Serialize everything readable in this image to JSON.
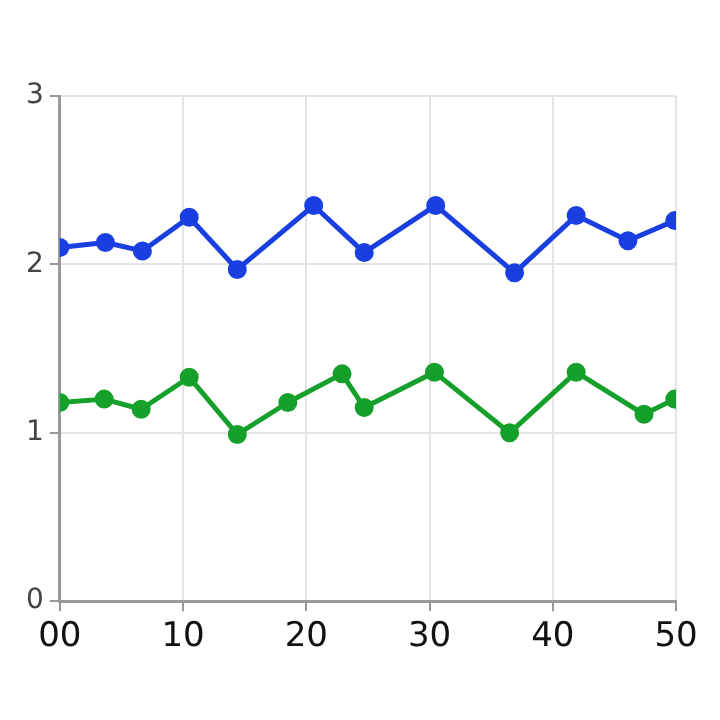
{
  "chart_data": {
    "type": "line",
    "xlim": [
      0,
      50
    ],
    "xticks": [
      {
        "value": 0,
        "label": "00"
      },
      10,
      20,
      30,
      40,
      50
    ],
    "ylim": [
      0,
      3
    ],
    "yticks": [
      0,
      1,
      2,
      3
    ],
    "grid": true,
    "marker": "circle",
    "line_style": "solid",
    "legend": false,
    "series": [
      {
        "color": "#1a3fe0",
        "x": [
          0,
          3.7,
          6.7,
          10.5,
          14.4,
          20.6,
          24.7,
          30.5,
          36.9,
          41.9,
          46.1,
          49.9
        ],
        "values": [
          2.1,
          2.13,
          2.08,
          2.28,
          1.97,
          2.35,
          2.07,
          2.35,
          1.95,
          2.29,
          2.14,
          2.26
        ]
      },
      {
        "color": "#14a02a",
        "x": [
          0,
          3.6,
          6.6,
          10.5,
          14.4,
          18.5,
          22.9,
          24.7,
          30.4,
          36.5,
          41.9,
          47.4,
          49.9
        ],
        "values": [
          1.18,
          1.2,
          1.14,
          1.33,
          0.99,
          1.18,
          1.35,
          1.15,
          1.36,
          1.0,
          1.36,
          1.11,
          1.2
        ]
      }
    ]
  }
}
